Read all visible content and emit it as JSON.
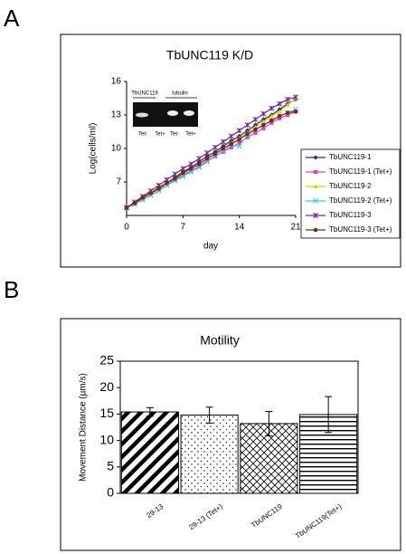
{
  "chart_data": [
    {
      "type": "line",
      "panel_label": "A",
      "title": "TbUNC119 K/D",
      "x_label": "day",
      "y_label": "Log(cells/ml)",
      "x": [
        0,
        1,
        2,
        3,
        4,
        5,
        6,
        7,
        8,
        9,
        10,
        11,
        12,
        13,
        14,
        15,
        16,
        17,
        18,
        19,
        20,
        21
      ],
      "xlim": [
        0,
        21
      ],
      "xticks": [
        0,
        7,
        14,
        21
      ],
      "ylim": [
        4,
        16
      ],
      "yticks": [
        7,
        10,
        13,
        16
      ],
      "legend": "right",
      "inset_labels": [
        "TbUNC119",
        "tubulin",
        "Tet-",
        "Tet+",
        "Tet-",
        "Tet+"
      ],
      "series": [
        {
          "name": "TbUNC119-1",
          "color": "#2e2e6e",
          "marker": "diamond",
          "values": [
            4.7,
            5.1,
            5.6,
            6.0,
            6.5,
            6.9,
            7.4,
            7.9,
            8.3,
            8.8,
            9.3,
            9.7,
            10.2,
            10.7,
            11.1,
            11.6,
            12.1,
            12.6,
            13.0,
            13.5,
            14.0,
            14.4
          ]
        },
        {
          "name": "TbUNC119-1 (Tet+)",
          "color": "#e040c0",
          "marker": "square",
          "values": [
            4.7,
            5.1,
            5.5,
            5.9,
            6.3,
            6.8,
            7.2,
            7.6,
            8.0,
            8.4,
            8.9,
            9.3,
            9.7,
            10.1,
            10.5,
            11.0,
            11.4,
            11.8,
            12.3,
            12.7,
            13.0,
            13.3
          ]
        },
        {
          "name": "TbUNC119-2",
          "color": "#e8d000",
          "marker": "triangle",
          "values": [
            4.7,
            5.0,
            5.4,
            5.9,
            6.3,
            6.8,
            7.3,
            7.7,
            8.2,
            8.6,
            9.1,
            9.5,
            10.0,
            10.5,
            10.9,
            11.4,
            11.9,
            12.4,
            12.9,
            13.3,
            13.9,
            14.5
          ]
        },
        {
          "name": "TbUNC119-2 (Tet+)",
          "color": "#40c8e8",
          "marker": "x",
          "values": [
            4.7,
            5.0,
            5.4,
            5.8,
            6.2,
            6.7,
            7.1,
            7.5,
            7.9,
            8.3,
            8.8,
            9.3,
            9.8,
            10.3,
            10.2,
            11.2,
            11.7,
            12.1,
            12.5,
            12.9,
            13.2,
            13.5
          ]
        },
        {
          "name": "TbUNC119-3",
          "color": "#7a2a8a",
          "marker": "star",
          "values": [
            4.7,
            5.2,
            5.7,
            6.2,
            6.7,
            7.2,
            7.7,
            8.2,
            8.6,
            9.1,
            9.6,
            10.1,
            10.6,
            11.1,
            11.6,
            12.1,
            12.6,
            13.1,
            13.6,
            14.0,
            14.4,
            14.6
          ]
        },
        {
          "name": "TbUNC119-3 (Tet+)",
          "color": "#7a2a1a",
          "marker": "circle",
          "values": [
            4.7,
            5.1,
            5.6,
            6.0,
            6.4,
            6.9,
            7.3,
            7.8,
            8.2,
            8.6,
            9.1,
            9.5,
            10.0,
            10.4,
            10.8,
            11.3,
            11.7,
            12.1,
            12.5,
            12.9,
            13.2,
            13.3
          ]
        }
      ]
    },
    {
      "type": "bar",
      "panel_label": "B",
      "title": "Motility",
      "y_label": "Movement Distance (µm/s)",
      "categories": [
        "29-13",
        "29-13 (Tet+)",
        "TbUNC119",
        "TbUNC119(Tet+)"
      ],
      "values": [
        15.4,
        14.8,
        13.2,
        14.9
      ],
      "errors": [
        0.8,
        1.5,
        2.3,
        3.4
      ],
      "patterns": [
        "diagonal",
        "dots",
        "crosshatch",
        "horizontal"
      ],
      "color": "#000000",
      "ylim": [
        0,
        25
      ],
      "yticks": [
        0,
        5,
        10,
        15,
        20,
        25
      ]
    }
  ]
}
